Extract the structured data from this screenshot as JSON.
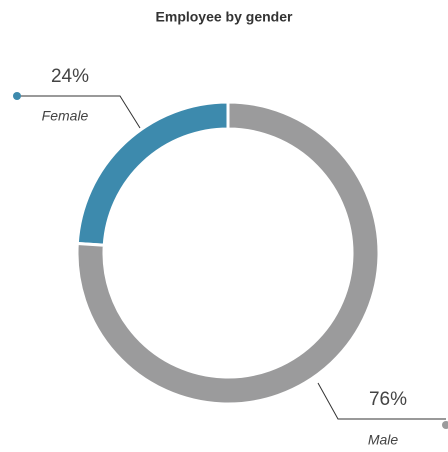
{
  "chart_data": {
    "type": "donut",
    "title": "Employee by gender",
    "categories": [
      "Female",
      "Male"
    ],
    "values": [
      24,
      76
    ],
    "value_labels": [
      "24%",
      "76%"
    ],
    "colors": [
      "#3d8aad",
      "#9b9b9c"
    ]
  }
}
